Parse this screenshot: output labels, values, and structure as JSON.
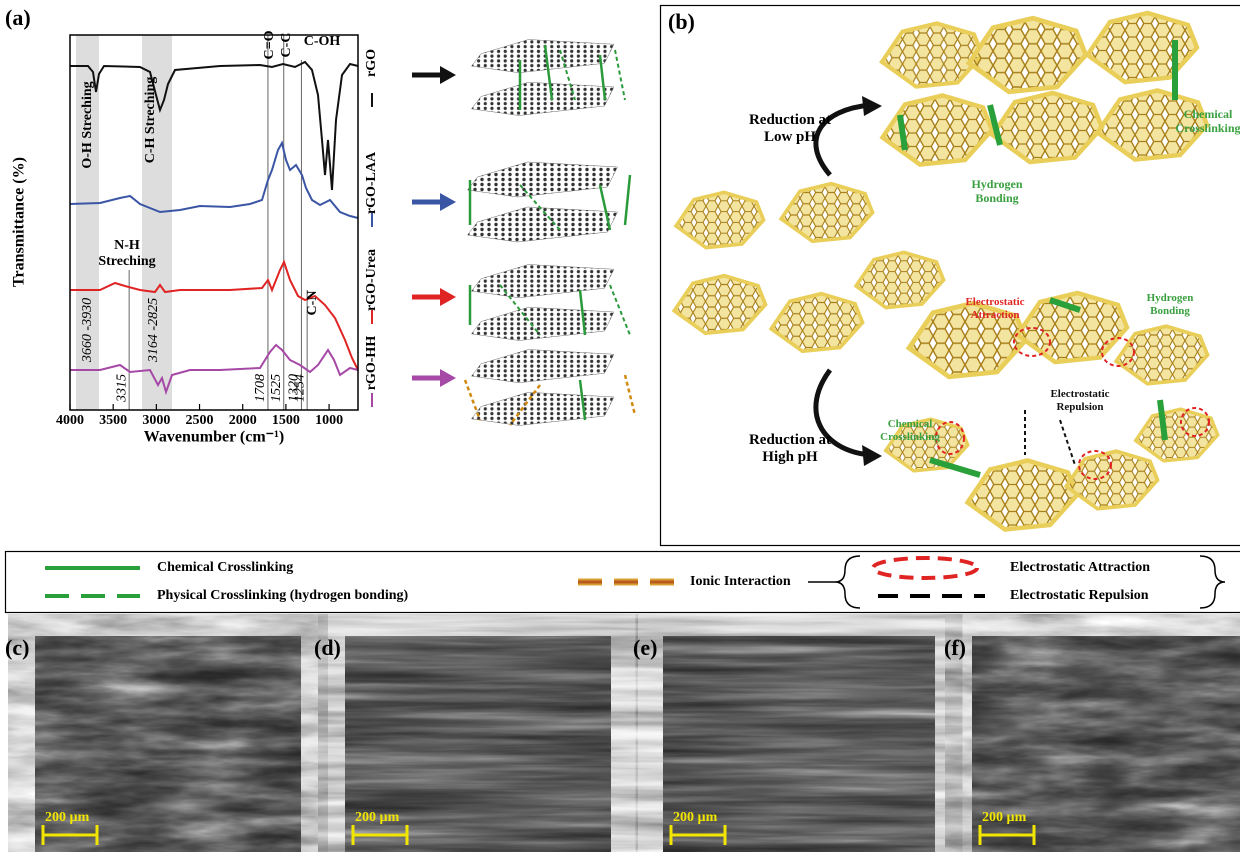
{
  "panel_a": {
    "label": "(a)",
    "y_axis_title": "Transmittance (%)",
    "x_axis_title": "Wavenumber (cm⁻¹)",
    "xlim": [
      4000,
      665
    ],
    "xticks": [
      4000,
      3500,
      3000,
      2500,
      2000,
      1500,
      1000
    ],
    "bond_labels": {
      "c_o": "C=O",
      "c_c": "C-C",
      "c_oh": "C-OH",
      "c_n": "C-N"
    },
    "region_labels": {
      "oh": "O-H Streching",
      "ch": "C-H Streching",
      "nh": "N-H Streching"
    },
    "band_labels": [
      "3660 -3930",
      "3164 -2825"
    ],
    "peak_lines": [
      3315,
      1708,
      1525,
      1320,
      1254
    ],
    "series": [
      {
        "name": "rGO",
        "color": "#111111"
      },
      {
        "name": "rGO-LAA",
        "color": "#3b55a5"
      },
      {
        "name": "rGO-Urea",
        "color": "#e02424"
      },
      {
        "name": "rGO-HH",
        "color": "#a648a6"
      }
    ]
  },
  "panel_b": {
    "label": "(b)",
    "low_ph": "Reduction at Low pH",
    "high_ph": "Reduction at High pH",
    "low_chemical": "Chemical Crosslinking",
    "low_hydrogen": "Hydrogen Bonding",
    "high_attraction": "Electrostatic Attraction",
    "high_hydrogen": "Hydrogen Bonding",
    "high_repulsion": "Electrostatic Repulsion",
    "high_chemical": "Chemical Crosslinking"
  },
  "legend": {
    "chemical": "Chemical Crosslinking",
    "physical": "Physical Crosslinking (hydrogen bonding)",
    "ionic": "Ionic Interaction",
    "attraction": "Electrostatic Attraction",
    "repulsion": "Electrostatic Repulsion"
  },
  "sem_panels": [
    {
      "label": "(c)",
      "scale_bar": "200 µm"
    },
    {
      "label": "(d)",
      "scale_bar": "200 µm"
    },
    {
      "label": "(e)",
      "scale_bar": "200 µm"
    },
    {
      "label": "(f)",
      "scale_bar": "200 µm"
    }
  ]
}
